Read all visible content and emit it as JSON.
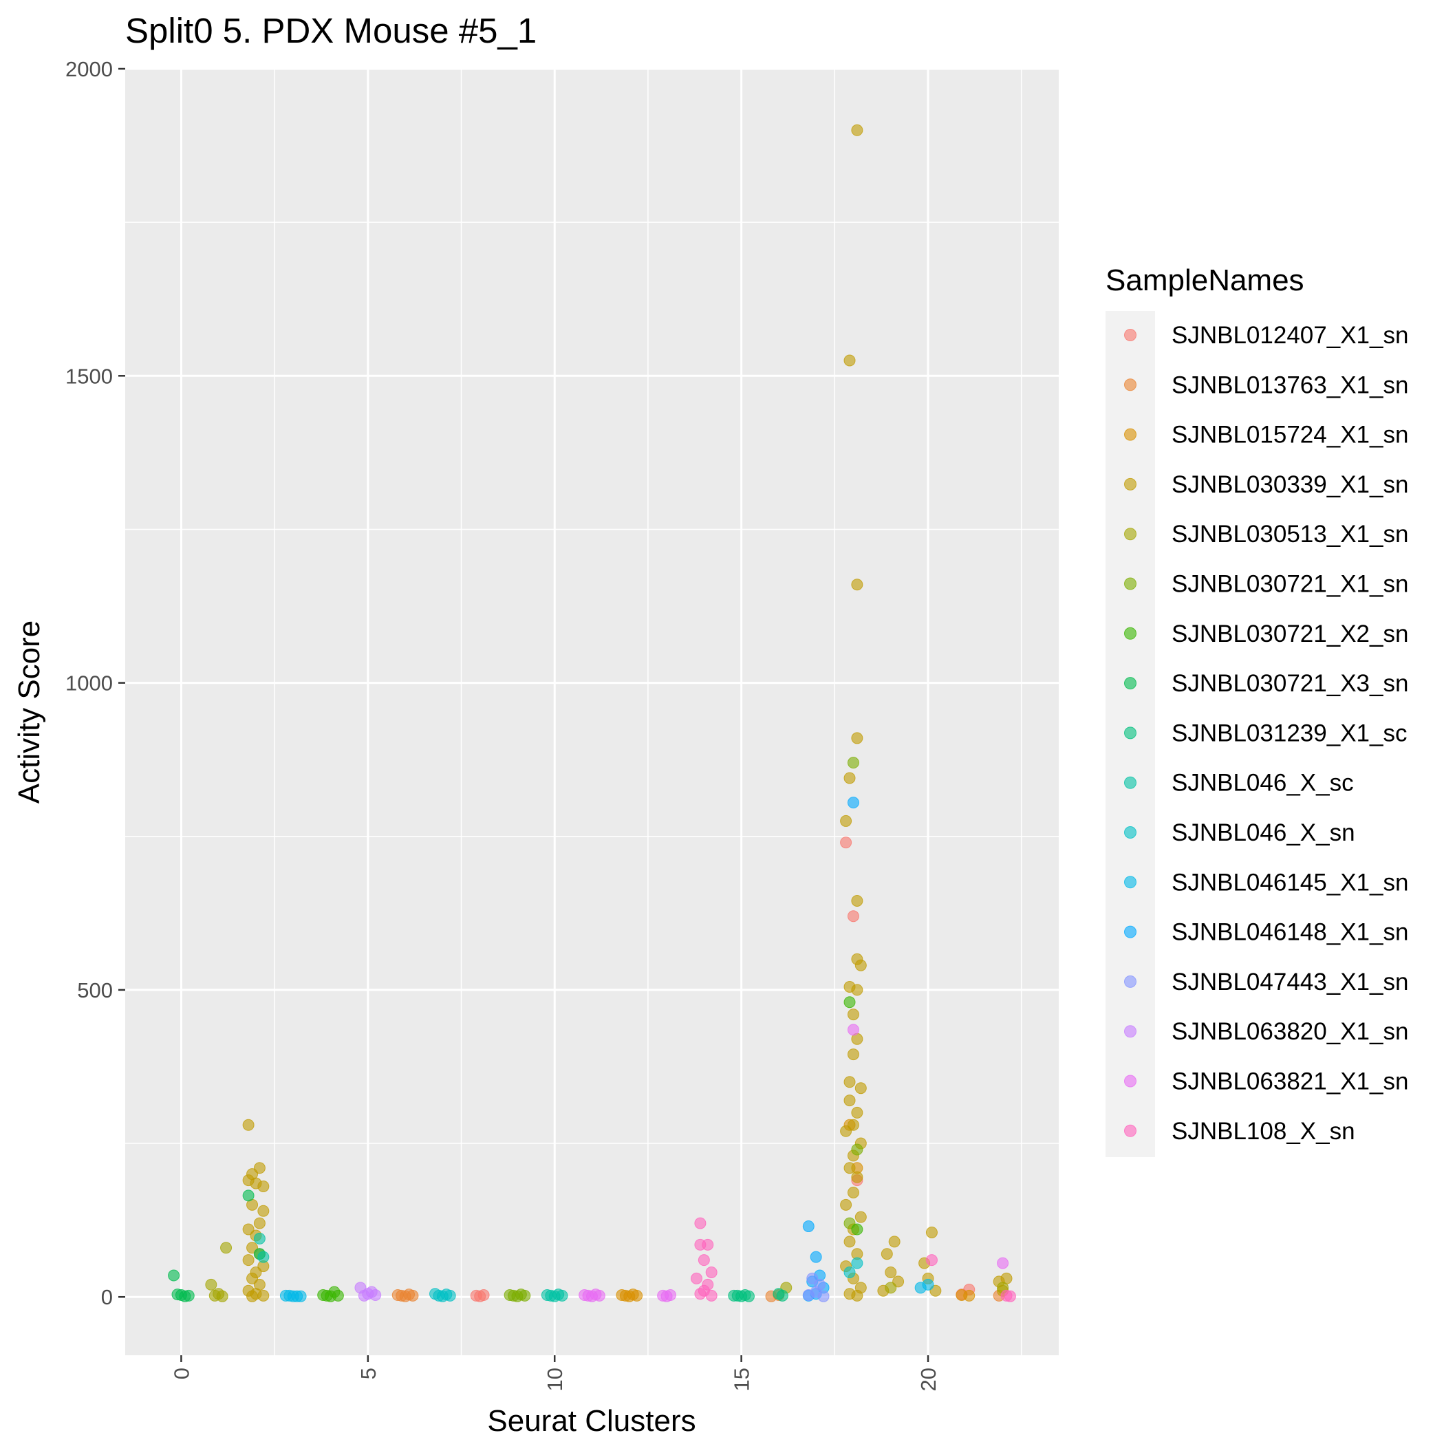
{
  "chart_data": {
    "type": "scatter",
    "title": "Split0 5. PDX Mouse #5_1",
    "xlabel": "Seurat Clusters",
    "ylabel": "Activity Score",
    "xlim": [
      -1.5,
      23.5
    ],
    "ylim": [
      -95,
      2000
    ],
    "x_ticks": [
      0,
      5,
      10,
      15,
      20
    ],
    "y_ticks": [
      0,
      500,
      1000,
      1500,
      2000
    ],
    "x_tick_labels": [
      "0",
      "5",
      "10",
      "15",
      "20"
    ],
    "y_tick_labels": [
      "0",
      "500",
      "1000",
      "1500",
      "2000"
    ],
    "x_tick_rotation": "vertical",
    "grid": true,
    "panel_background": "#ebebeb",
    "point_alpha": 0.6,
    "jitter": true,
    "legend": {
      "title": "SampleNames",
      "position": "right"
    },
    "series": [
      {
        "name": "SJNBL012407_X1_sn",
        "color": "#F8766D",
        "points": [
          [
            7.9,
            2
          ],
          [
            8.1,
            3
          ],
          [
            8.0,
            1
          ],
          [
            17.8,
            740
          ],
          [
            18.0,
            620
          ],
          [
            18.1,
            190
          ],
          [
            21.1,
            12
          ],
          [
            20.9,
            4
          ]
        ]
      },
      {
        "name": "SJNBL013763_X1_sn",
        "color": "#EA8331",
        "points": [
          [
            5.9,
            2
          ],
          [
            6.1,
            4
          ],
          [
            6.0,
            1
          ],
          [
            5.8,
            3
          ],
          [
            6.2,
            2
          ],
          [
            15.8,
            1
          ],
          [
            16.0,
            3
          ],
          [
            21.9,
            2
          ]
        ]
      },
      {
        "name": "SJNBL015724_X1_sn",
        "color": "#D89000",
        "points": [
          [
            11.9,
            2
          ],
          [
            12.1,
            4
          ],
          [
            12.0,
            1
          ],
          [
            11.8,
            3
          ],
          [
            12.2,
            2
          ],
          [
            17.9,
            280
          ],
          [
            18.1,
            210
          ],
          [
            20.9,
            3
          ],
          [
            21.1,
            2
          ]
        ]
      },
      {
        "name": "SJNBL030339_X1_sn",
        "color": "#C09B00",
        "points": [
          [
            1.8,
            280
          ],
          [
            1.9,
            200
          ],
          [
            2.1,
            210
          ],
          [
            1.8,
            190
          ],
          [
            2.0,
            185
          ],
          [
            2.2,
            180
          ],
          [
            1.9,
            150
          ],
          [
            2.2,
            140
          ],
          [
            2.1,
            120
          ],
          [
            1.8,
            110
          ],
          [
            2.0,
            100
          ],
          [
            1.9,
            80
          ],
          [
            2.1,
            70
          ],
          [
            1.8,
            60
          ],
          [
            2.2,
            50
          ],
          [
            2.0,
            40
          ],
          [
            1.9,
            30
          ],
          [
            2.1,
            20
          ],
          [
            1.8,
            10
          ],
          [
            2.0,
            5
          ],
          [
            2.2,
            2
          ],
          [
            1.9,
            1
          ],
          [
            18.1,
            1900
          ],
          [
            17.9,
            1525
          ],
          [
            18.1,
            1160
          ],
          [
            18.1,
            910
          ],
          [
            17.9,
            845
          ],
          [
            17.8,
            775
          ],
          [
            18.1,
            645
          ],
          [
            18.1,
            550
          ],
          [
            18.2,
            540
          ],
          [
            17.9,
            505
          ],
          [
            18.1,
            500
          ],
          [
            18.0,
            460
          ],
          [
            18.1,
            420
          ],
          [
            18.0,
            395
          ],
          [
            17.9,
            350
          ],
          [
            18.2,
            340
          ],
          [
            17.9,
            320
          ],
          [
            18.1,
            300
          ],
          [
            18.0,
            280
          ],
          [
            17.8,
            270
          ],
          [
            18.2,
            250
          ],
          [
            18.0,
            230
          ],
          [
            17.9,
            210
          ],
          [
            18.1,
            195
          ],
          [
            18.0,
            170
          ],
          [
            17.8,
            150
          ],
          [
            18.2,
            130
          ],
          [
            18.0,
            110
          ],
          [
            17.9,
            90
          ],
          [
            18.1,
            70
          ],
          [
            17.8,
            50
          ],
          [
            18.0,
            30
          ],
          [
            18.2,
            15
          ],
          [
            17.9,
            5
          ],
          [
            18.1,
            2
          ],
          [
            19.1,
            90
          ],
          [
            18.9,
            70
          ],
          [
            19.0,
            40
          ],
          [
            19.2,
            25
          ],
          [
            18.8,
            10
          ],
          [
            20.1,
            105
          ],
          [
            19.9,
            55
          ],
          [
            20.0,
            30
          ],
          [
            20.2,
            10
          ],
          [
            21.9,
            25
          ],
          [
            22.1,
            30
          ],
          [
            22.0,
            10
          ]
        ]
      },
      {
        "name": "SJNBL030513_X1_sn",
        "color": "#A3A500",
        "points": [
          [
            0.8,
            20
          ],
          [
            1.2,
            80
          ],
          [
            1.0,
            5
          ],
          [
            0.9,
            2
          ],
          [
            1.1,
            1
          ],
          [
            16.2,
            15
          ],
          [
            19.0,
            15
          ],
          [
            22.0,
            15
          ]
        ]
      },
      {
        "name": "SJNBL030721_X1_sn",
        "color": "#7CAE00",
        "points": [
          [
            8.9,
            2
          ],
          [
            9.1,
            4
          ],
          [
            9.0,
            1
          ],
          [
            8.8,
            3
          ],
          [
            9.2,
            2
          ],
          [
            18.0,
            870
          ],
          [
            18.1,
            240
          ],
          [
            17.9,
            120
          ]
        ]
      },
      {
        "name": "SJNBL030721_X2_sn",
        "color": "#39B600",
        "points": [
          [
            3.9,
            2
          ],
          [
            4.1,
            8
          ],
          [
            4.0,
            1
          ],
          [
            3.8,
            3
          ],
          [
            4.2,
            2
          ],
          [
            17.9,
            480
          ],
          [
            18.1,
            110
          ]
        ]
      },
      {
        "name": "SJNBL030721_X3_sn",
        "color": "#00BB4E",
        "points": [
          [
            -0.2,
            35
          ],
          [
            0.0,
            3
          ],
          [
            0.1,
            1
          ],
          [
            0.2,
            2
          ],
          [
            -0.1,
            4
          ],
          [
            1.8,
            165
          ],
          [
            2.1,
            70
          ]
        ]
      },
      {
        "name": "SJNBL031239_X1_sc",
        "color": "#00BF7D",
        "points": [
          [
            14.9,
            2
          ],
          [
            15.1,
            3
          ],
          [
            15.0,
            1
          ],
          [
            14.8,
            2
          ],
          [
            15.2,
            1
          ],
          [
            16.0,
            5
          ],
          [
            16.1,
            2
          ]
        ]
      },
      {
        "name": "SJNBL046_X_sc",
        "color": "#00C1A3",
        "points": [
          [
            9.9,
            2
          ],
          [
            10.1,
            4
          ],
          [
            10.0,
            1
          ],
          [
            9.8,
            3
          ],
          [
            10.2,
            2
          ],
          [
            2.1,
            95
          ],
          [
            2.2,
            65
          ]
        ]
      },
      {
        "name": "SJNBL046_X_sn",
        "color": "#00BFC4",
        "points": [
          [
            6.9,
            2
          ],
          [
            7.1,
            4
          ],
          [
            7.0,
            1
          ],
          [
            6.8,
            5
          ],
          [
            7.2,
            2
          ],
          [
            17.9,
            40
          ],
          [
            18.1,
            55
          ]
        ]
      },
      {
        "name": "SJNBL046145_X1_sn",
        "color": "#00B8E7",
        "points": [
          [
            2.9,
            2
          ],
          [
            3.1,
            1
          ],
          [
            3.0,
            1
          ],
          [
            2.8,
            2
          ],
          [
            3.2,
            1
          ],
          [
            19.8,
            15
          ],
          [
            20.0,
            20
          ]
        ]
      },
      {
        "name": "SJNBL046148_X1_sn",
        "color": "#00A9FF",
        "points": [
          [
            16.8,
            115
          ],
          [
            17.0,
            65
          ],
          [
            17.1,
            35
          ],
          [
            16.9,
            25
          ],
          [
            17.2,
            15
          ],
          [
            17.0,
            5
          ],
          [
            16.8,
            2
          ],
          [
            18.0,
            805
          ]
        ]
      },
      {
        "name": "SJNBL047443_X1_sn",
        "color": "#8494FF",
        "points": [
          [
            16.9,
            30
          ],
          [
            17.1,
            20
          ],
          [
            17.0,
            8
          ],
          [
            16.8,
            3
          ],
          [
            17.2,
            1
          ]
        ]
      },
      {
        "name": "SJNBL063820_X1_sn",
        "color": "#C77CFF",
        "points": [
          [
            4.8,
            15
          ],
          [
            5.0,
            5
          ],
          [
            5.1,
            8
          ],
          [
            4.9,
            2
          ],
          [
            5.2,
            3
          ]
        ]
      },
      {
        "name": "SJNBL063821_X1_sn",
        "color": "#E76BF3",
        "points": [
          [
            10.9,
            2
          ],
          [
            11.1,
            4
          ],
          [
            11.0,
            1
          ],
          [
            10.8,
            3
          ],
          [
            11.2,
            2
          ],
          [
            12.9,
            2
          ],
          [
            13.1,
            3
          ],
          [
            13.0,
            1
          ],
          [
            18.0,
            435
          ],
          [
            22.0,
            55
          ]
        ]
      },
      {
        "name": "SJNBL108_X_sn",
        "color": "#FF62BC",
        "points": [
          [
            13.9,
            120
          ],
          [
            13.9,
            85
          ],
          [
            14.1,
            85
          ],
          [
            14.0,
            60
          ],
          [
            14.2,
            40
          ],
          [
            13.8,
            30
          ],
          [
            14.1,
            20
          ],
          [
            14.0,
            10
          ],
          [
            13.9,
            5
          ],
          [
            14.2,
            2
          ],
          [
            20.1,
            60
          ],
          [
            22.1,
            2
          ],
          [
            22.2,
            1
          ]
        ]
      }
    ],
    "legend_key_colors": [
      "#F8766D",
      "#EA8331",
      "#D89000",
      "#C09B00",
      "#A3A500",
      "#7CAE00",
      "#39B600",
      "#00BB4E",
      "#00BF7D",
      "#00C1A3",
      "#00BFC4",
      "#00B8E7",
      "#00A9FF",
      "#8494FF",
      "#C77CFF",
      "#E76BF3",
      "#FF62BC"
    ]
  }
}
